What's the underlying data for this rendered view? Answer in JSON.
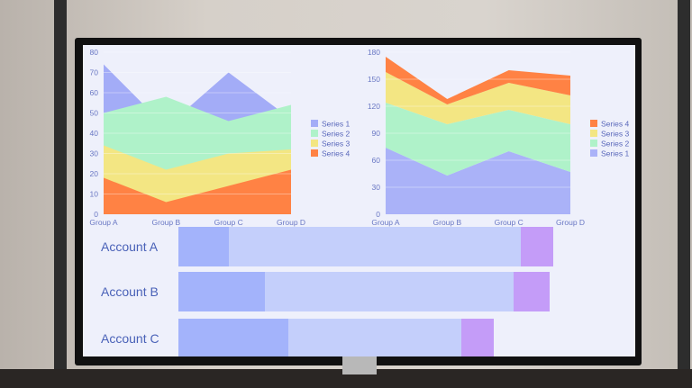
{
  "chart_data": [
    {
      "type": "area",
      "stacked": false,
      "categories": [
        "Group A",
        "Group B",
        "Group C",
        "Group D"
      ],
      "ylim": [
        0,
        80
      ],
      "yticks": [
        0,
        10,
        20,
        30,
        40,
        50,
        60,
        70,
        80
      ],
      "legend_position": "right",
      "grid": true,
      "series": [
        {
          "name": "Series 1",
          "color": "#a3acf7",
          "values": [
            74,
            43,
            70,
            47
          ]
        },
        {
          "name": "Series 2",
          "color": "#aff2c9",
          "values": [
            50,
            58,
            46,
            54
          ]
        },
        {
          "name": "Series 3",
          "color": "#f3e683",
          "values": [
            34,
            22,
            30,
            32
          ]
        },
        {
          "name": "Series 4",
          "color": "#ff8244",
          "values": [
            18,
            6,
            14,
            22
          ]
        }
      ]
    },
    {
      "type": "area",
      "stacked": true,
      "categories": [
        "Group A",
        "Group B",
        "Group C",
        "Group D"
      ],
      "ylim": [
        0,
        180
      ],
      "yticks": [
        0,
        30,
        60,
        90,
        120,
        150,
        180
      ],
      "legend_position": "right",
      "grid": true,
      "legend_order": [
        "Series 4",
        "Series 3",
        "Series 2",
        "Series 1"
      ],
      "series": [
        {
          "name": "Series 1",
          "color": "#aab2f8",
          "values": [
            74,
            43,
            70,
            47
          ]
        },
        {
          "name": "Series 2",
          "color": "#aff2c9",
          "values": [
            50,
            57,
            46,
            53
          ]
        },
        {
          "name": "Series 3",
          "color": "#f3e683",
          "values": [
            34,
            22,
            30,
            32
          ]
        },
        {
          "name": "Series 4",
          "color": "#ff8244",
          "values": [
            17,
            6,
            14,
            22
          ]
        }
      ]
    },
    {
      "type": "bar",
      "orientation": "horizontal",
      "stacked": true,
      "categories": [
        "Account A",
        "Account B",
        "Account C"
      ],
      "colors": [
        "#a3b3fb",
        "#c4cffb",
        "#c49cf8"
      ],
      "series": [
        {
          "values": [
            14,
            24,
            30.5
          ]
        },
        {
          "values": [
            81,
            69,
            48
          ]
        },
        {
          "values": [
            9,
            10,
            9
          ]
        }
      ]
    }
  ]
}
